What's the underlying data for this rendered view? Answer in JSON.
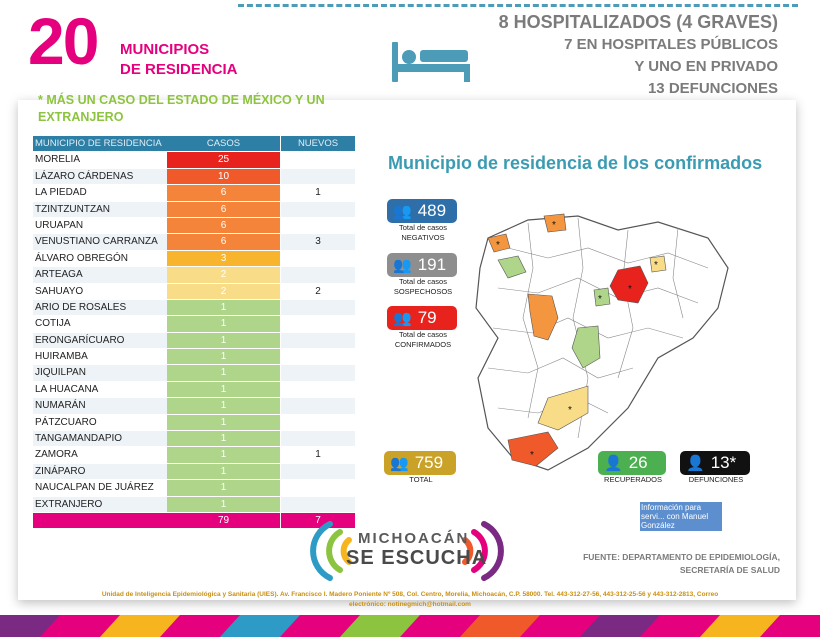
{
  "header": {
    "count": "20",
    "title_line1": "MUNICIPIOS",
    "title_line2": "DE RESIDENCIA",
    "note": "* MÁS UN CASO DEL ESTADO DE MÉXICO Y UN EXTRANJERO"
  },
  "hospital": {
    "line1": "8 HOSPITALIZADOS (4 GRAVES)",
    "line2": "7 EN HOSPITALES PÚBLICOS",
    "line3": "Y UNO EN PRIVADO",
    "line4": "13 DEFUNCIONES",
    "icon": "hospital-bed-icon"
  },
  "table": {
    "headers": [
      "MUNICIPIO DE RESIDENCIA",
      "CASOS",
      "NUEVOS"
    ],
    "rows": [
      {
        "municipio": "MORELIA",
        "casos": "25",
        "nuevos": "",
        "color": "#e8231d"
      },
      {
        "municipio": "LÁZARO CÁRDENAS",
        "casos": "10",
        "nuevos": "",
        "color": "#f05a2a"
      },
      {
        "municipio": "LA PIEDAD",
        "casos": "6",
        "nuevos": "1",
        "color": "#f4843a"
      },
      {
        "municipio": "TZINTZUNTZAN",
        "casos": "6",
        "nuevos": "",
        "color": "#f4843a"
      },
      {
        "municipio": "URUAPAN",
        "casos": "6",
        "nuevos": "",
        "color": "#f4843a"
      },
      {
        "municipio": "VENUSTIANO CARRANZA",
        "casos": "6",
        "nuevos": "3",
        "color": "#f4843a"
      },
      {
        "municipio": "ÁLVARO OBREGÓN",
        "casos": "3",
        "nuevos": "",
        "color": "#f7b42c"
      },
      {
        "municipio": "ARTEAGA",
        "casos": "2",
        "nuevos": "",
        "color": "#f9dc87"
      },
      {
        "municipio": "SAHUAYO",
        "casos": "2",
        "nuevos": "2",
        "color": "#f9dc87"
      },
      {
        "municipio": "ARIO DE ROSALES",
        "casos": "1",
        "nuevos": "",
        "color": "#aed58a"
      },
      {
        "municipio": "COTIJA",
        "casos": "1",
        "nuevos": "",
        "color": "#aed58a"
      },
      {
        "municipio": "ERONGARÍCUARO",
        "casos": "1",
        "nuevos": "",
        "color": "#aed58a"
      },
      {
        "municipio": "HUIRAMBA",
        "casos": "1",
        "nuevos": "",
        "color": "#aed58a"
      },
      {
        "municipio": "JIQUILPAN",
        "casos": "1",
        "nuevos": "",
        "color": "#aed58a"
      },
      {
        "municipio": "LA HUACANA",
        "casos": "1",
        "nuevos": "",
        "color": "#aed58a"
      },
      {
        "municipio": "NUMARÁN",
        "casos": "1",
        "nuevos": "",
        "color": "#aed58a"
      },
      {
        "municipio": "PÁTZCUARO",
        "casos": "1",
        "nuevos": "",
        "color": "#aed58a"
      },
      {
        "municipio": "TANGAMANDAPIO",
        "casos": "1",
        "nuevos": "",
        "color": "#aed58a"
      },
      {
        "municipio": "ZAMORA",
        "casos": "1",
        "nuevos": "1",
        "color": "#aed58a"
      },
      {
        "municipio": "ZINÁPARO",
        "casos": "1",
        "nuevos": "",
        "color": "#aed58a"
      },
      {
        "municipio": "NAUCALPAN DE JUÁREZ",
        "casos": "1",
        "nuevos": "",
        "color": "#aed58a"
      },
      {
        "municipio": "EXTRANJERO",
        "casos": "1",
        "nuevos": "",
        "color": "#aed58a"
      }
    ],
    "total_casos": "79",
    "total_nuevos": "7"
  },
  "map": {
    "title": "Municipio de residencia de los confirmados",
    "negativos": {
      "value": "489",
      "caption1": "Total de casos",
      "caption2": "NEGATIVOS",
      "color": "#2f6fa9"
    },
    "sospechosos": {
      "value": "191",
      "caption1": "Total de casos",
      "caption2": "SOSPECHOSOS",
      "color": "#8e8e8e"
    },
    "confirmados": {
      "value": "79",
      "caption1": "Total de casos",
      "caption2": "CONFIRMADOS",
      "color": "#e8231d"
    },
    "total": {
      "value": "759",
      "caption": "TOTAL",
      "color": "#c9a227"
    },
    "recuperados": {
      "value": "26",
      "caption": "RECUPERADOS",
      "color": "#4caf50"
    },
    "defunciones": {
      "value": "13*",
      "caption": "DEFUNCIONES",
      "color": "#111111"
    }
  },
  "brand": {
    "line1": "MICHOACÁN",
    "line2": "SE ESCUCHA"
  },
  "footer": {
    "fuente1": "FUENTE: DEPARTAMENTO DE EPIDEMIOLOGÍA,",
    "fuente2": "SECRETARÍA DE SALUD",
    "address1": "Unidad de Inteligencia Epidemiológica y Sanitaria (UIES). Av. Francisco I. Madero Poniente Nº 508, Col. Centro, Morelia, Michoacán, C.P. 58000. Tel. 443-312-27-56, 443-312-25-56 y 443-312-2813, Correo",
    "address2": "electrónico: notinegmich@hotmail.com"
  },
  "watermark": "Información para servi... con Manuel González"
}
